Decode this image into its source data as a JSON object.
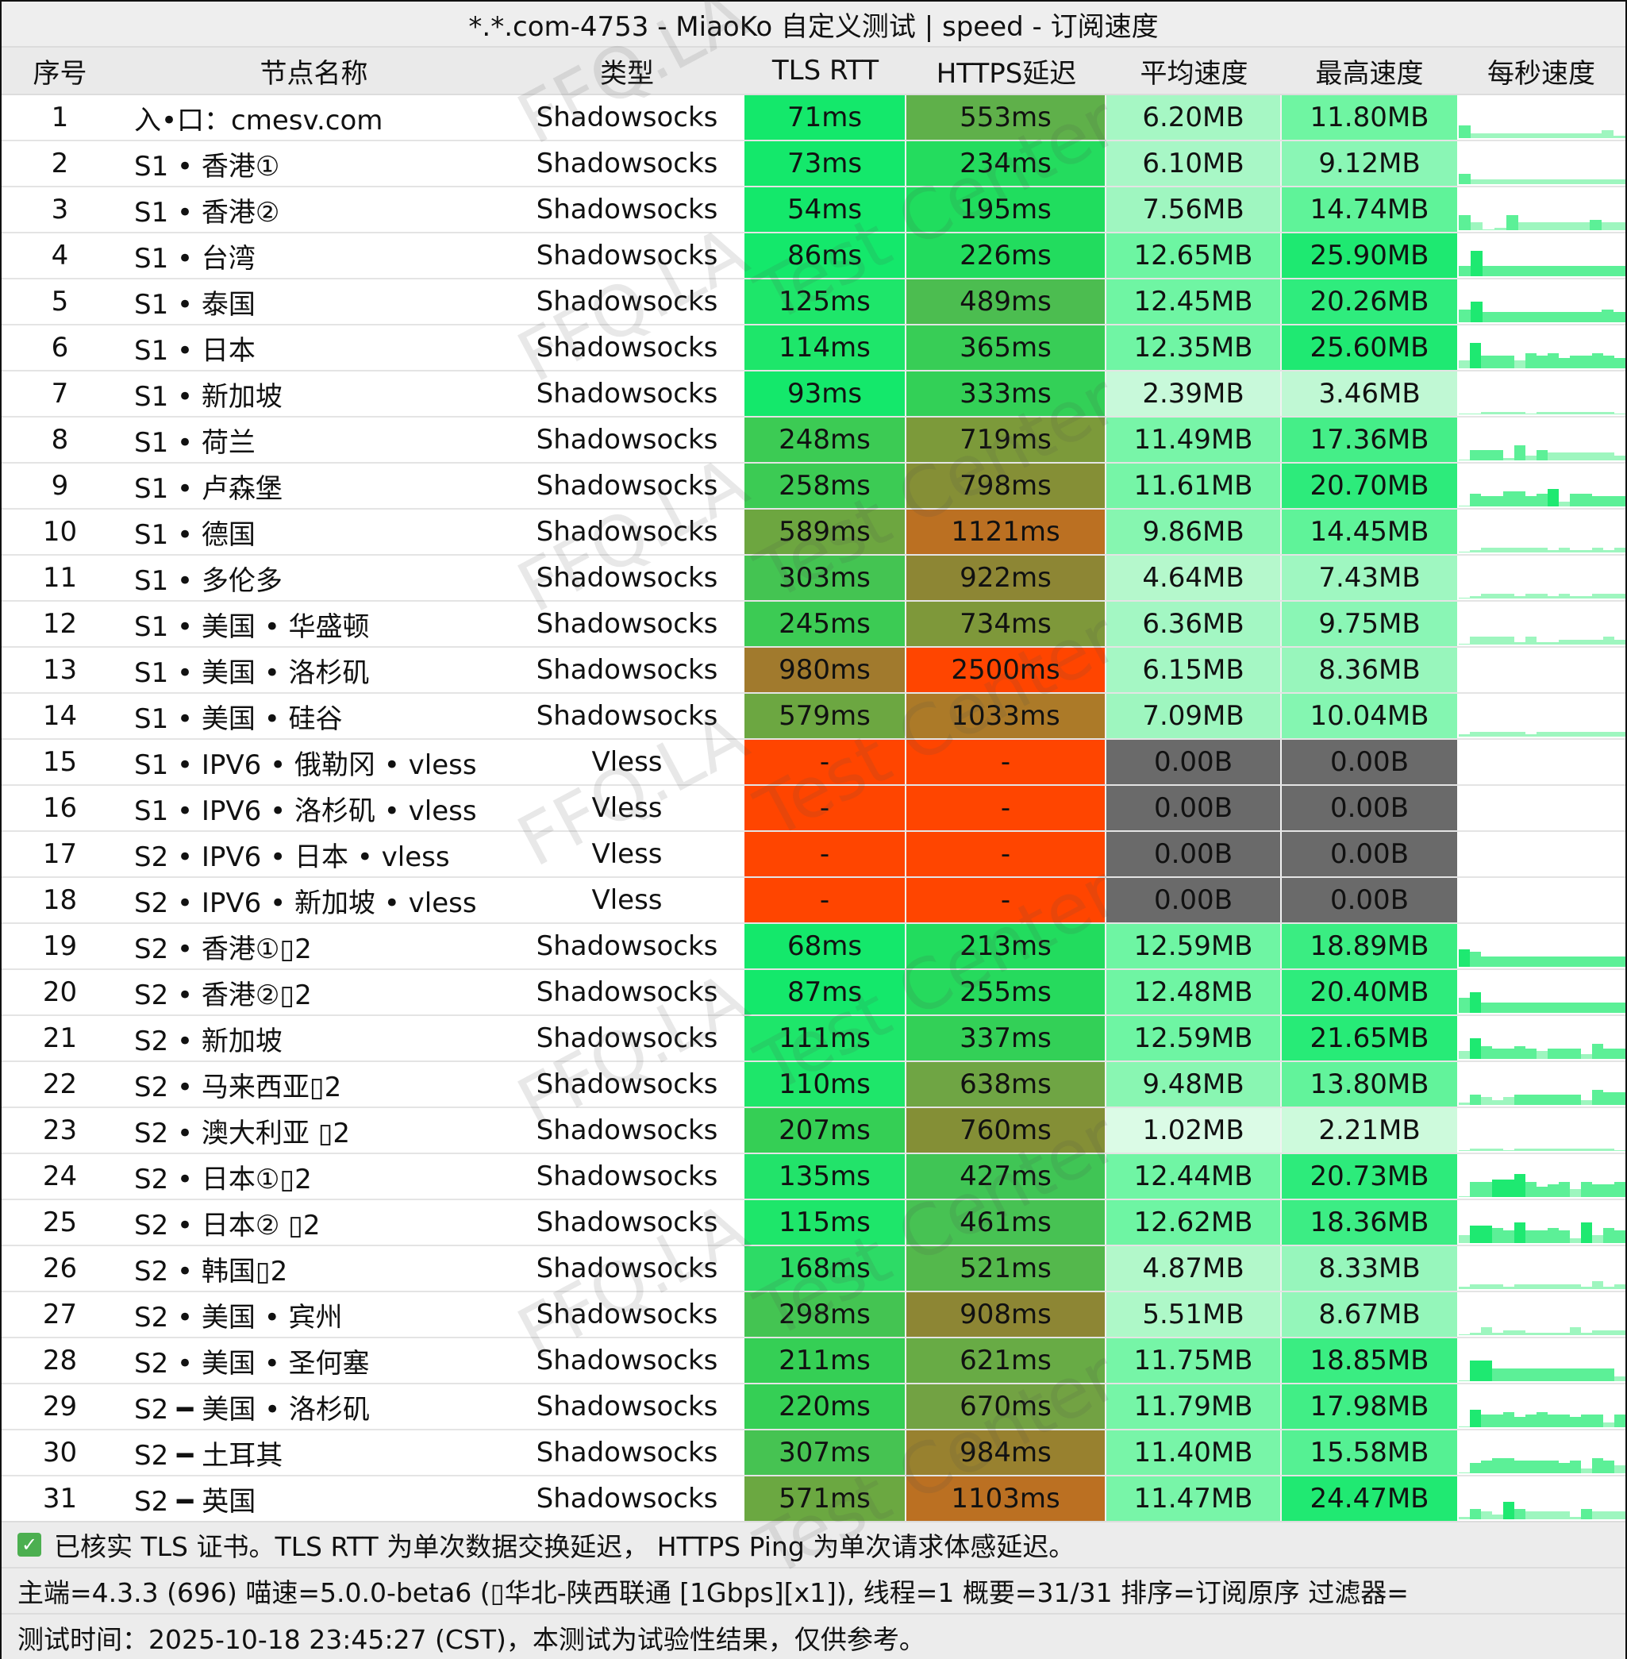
{
  "title": "*.*.com-4753 - MiaoKo 自定义测试 | speed - 订阅速度",
  "columns": {
    "idx": "序号",
    "name": "节点名称",
    "type": "类型",
    "tls": "TLS RTT",
    "https": "HTTPS延迟",
    "avg": "平均速度",
    "max": "最高速度",
    "persec": "每秒速度"
  },
  "colors": {
    "green_bright": "#0ee86a",
    "green_mid": "#3fcc5a",
    "olive": "#6fa544",
    "olive_brown": "#8a8a35",
    "orange_brown": "#bb7022",
    "red_orange": "#ff4500",
    "gray_fail": "#6a6a6a"
  },
  "rows": [
    {
      "idx": "1",
      "name": "入•口：cmesv.com",
      "type": "Shadowsocks",
      "tls": "71ms",
      "https": "553ms",
      "avg": "6.20MB",
      "max": "11.80MB",
      "tls_c": "#14e86b",
      "https_c": "#5fb04a",
      "avg_c": "#a6f7c4",
      "max_c": "#6ff5a2",
      "spark": [
        5,
        2,
        2,
        2,
        2,
        2,
        2,
        2,
        2,
        2,
        2,
        2,
        3,
        1
      ]
    },
    {
      "idx": "2",
      "name": "S1 • 香港①",
      "type": "Shadowsocks",
      "tls": "73ms",
      "https": "234ms",
      "avg": "6.10MB",
      "max": "9.12MB",
      "tls_c": "#14e86b",
      "https_c": "#24dc5e",
      "avg_c": "#a8f7c6",
      "max_c": "#8af6b5",
      "spark": [
        4,
        2,
        2,
        2,
        2,
        2,
        2,
        2,
        2,
        2,
        2,
        2,
        2,
        2
      ]
    },
    {
      "idx": "3",
      "name": "S1 • 香港②",
      "type": "Shadowsocks",
      "tls": "54ms",
      "https": "195ms",
      "avg": "7.56MB",
      "max": "14.74MB",
      "tls_c": "#14e86b",
      "https_c": "#20dd5e",
      "avg_c": "#9ff6c0",
      "max_c": "#5ff399",
      "spark": [
        6,
        3,
        0,
        1,
        6,
        3,
        3,
        3,
        3,
        3,
        3,
        4,
        3,
        3
      ]
    },
    {
      "idx": "4",
      "name": "S1 • 台湾",
      "type": "Shadowsocks",
      "tls": "86ms",
      "https": "226ms",
      "avg": "12.65MB",
      "max": "25.90MB",
      "tls_c": "#14e86b",
      "https_c": "#22dc5e",
      "avg_c": "#6df5a2",
      "max_c": "#1ee971",
      "spark": [
        4,
        10,
        4,
        4,
        4,
        4,
        4,
        4,
        4,
        4,
        4,
        4,
        4,
        4
      ]
    },
    {
      "idx": "5",
      "name": "S1 • 泰国",
      "type": "Shadowsocks",
      "tls": "125ms",
      "https": "489ms",
      "avg": "12.45MB",
      "max": "20.26MB",
      "tls_c": "#1ee66a",
      "https_c": "#4cbd50",
      "avg_c": "#6ff5a3",
      "max_c": "#2fec7d",
      "spark": [
        5,
        8,
        4,
        4,
        4,
        4,
        4,
        4,
        4,
        4,
        4,
        4,
        5,
        4
      ]
    },
    {
      "idx": "6",
      "name": "S1 • 日本",
      "type": "Shadowsocks",
      "tls": "114ms",
      "https": "365ms",
      "avg": "12.35MB",
      "max": "25.60MB",
      "tls_c": "#1ee66a",
      "https_c": "#38cd56",
      "avg_c": "#70f5a4",
      "max_c": "#1fe972",
      "spark": [
        3,
        10,
        5,
        5,
        5,
        3,
        6,
        5,
        6,
        4,
        5,
        5,
        6,
        5,
        4
      ]
    },
    {
      "idx": "7",
      "name": "S1 • 新加坡",
      "type": "Shadowsocks",
      "tls": "93ms",
      "https": "333ms",
      "avg": "2.39MB",
      "max": "3.46MB",
      "tls_c": "#14e86b",
      "https_c": "#33d057",
      "avg_c": "#c8f9da",
      "max_c": "#c0f8d4",
      "spark": [
        0,
        0,
        1,
        1,
        1,
        1,
        0,
        1,
        1,
        1,
        1,
        1,
        1,
        1,
        0
      ]
    },
    {
      "idx": "8",
      "name": "S1 • 荷兰",
      "type": "Shadowsocks",
      "tls": "248ms",
      "https": "719ms",
      "avg": "11.49MB",
      "max": "17.36MB",
      "tls_c": "#3ccb54",
      "https_c": "#7c9a3a",
      "avg_c": "#78f5a8",
      "max_c": "#45ee88",
      "spark": [
        0,
        4,
        4,
        4,
        1,
        6,
        2,
        4,
        3,
        3,
        3,
        3,
        3,
        3,
        2
      ]
    },
    {
      "idx": "9",
      "name": "S1 • 卢森堡",
      "type": "Shadowsocks",
      "tls": "258ms",
      "https": "798ms",
      "avg": "11.61MB",
      "max": "20.70MB",
      "tls_c": "#3ccb54",
      "https_c": "#858f36",
      "avg_c": "#76f5a7",
      "max_c": "#2deb7b",
      "spark": [
        0,
        5,
        4,
        4,
        6,
        6,
        4,
        5,
        7,
        2,
        5,
        5,
        4,
        4,
        4
      ]
    },
    {
      "idx": "10",
      "name": "S1 • 德国",
      "type": "Shadowsocks",
      "tls": "589ms",
      "https": "1121ms",
      "avg": "9.86MB",
      "max": "14.45MB",
      "tls_c": "#6da640",
      "https_c": "#bb7022",
      "avg_c": "#86f6b0",
      "max_c": "#5ff399",
      "spark": [
        0,
        1,
        2,
        2,
        2,
        2,
        2,
        2,
        1,
        2,
        1,
        1,
        2,
        1,
        2
      ]
    },
    {
      "idx": "11",
      "name": "S1 • 多伦多",
      "type": "Shadowsocks",
      "tls": "303ms",
      "https": "922ms",
      "avg": "4.64MB",
      "max": "7.43MB",
      "tls_c": "#44c452",
      "https_c": "#8d8634",
      "avg_c": "#b5f8cc",
      "max_c": "#9ff7c1",
      "spark": [
        0,
        1,
        2,
        2,
        2,
        1,
        2,
        2,
        1,
        2,
        1,
        1,
        2,
        2,
        2
      ]
    },
    {
      "idx": "12",
      "name": "S1 • 美国 • 华盛顿",
      "type": "Shadowsocks",
      "tls": "245ms",
      "https": "734ms",
      "avg": "6.36MB",
      "max": "9.75MB",
      "tls_c": "#3ccb54",
      "https_c": "#7e983a",
      "avg_c": "#a3f7c3",
      "max_c": "#8af6b5",
      "spark": [
        0,
        3,
        3,
        3,
        3,
        1,
        3,
        1,
        1,
        2,
        2,
        2,
        2,
        3,
        2
      ]
    },
    {
      "idx": "13",
      "name": "S1 • 美国 • 洛杉矶",
      "type": "Shadowsocks",
      "tls": "980ms",
      "https": "2500ms",
      "avg": "6.15MB",
      "max": "8.36MB",
      "tls_c": "#a17a2d",
      "https_c": "#ff4500",
      "avg_c": "#a5f7c4",
      "max_c": "#98f6bc",
      "spark": []
    },
    {
      "idx": "14",
      "name": "S1 • 美国 • 硅谷",
      "type": "Shadowsocks",
      "tls": "579ms",
      "https": "1033ms",
      "avg": "7.09MB",
      "max": "10.04MB",
      "tls_c": "#6ca741",
      "https_c": "#ac7a28",
      "avg_c": "#9ef6bf",
      "max_c": "#84f6b1",
      "spark": [
        1,
        2,
        2,
        2,
        2,
        2,
        1,
        2,
        2,
        2,
        2,
        2,
        2,
        2,
        2
      ]
    },
    {
      "idx": "15",
      "name": "S1 •  IPV6 • 俄勒冈 • vless",
      "type": "Vless",
      "tls": "-",
      "https": "-",
      "avg": "0.00B",
      "max": "0.00B",
      "tls_c": "#ff4500",
      "https_c": "#ff4500",
      "avg_c": "#6a6a6a",
      "max_c": "#6a6a6a",
      "spark": []
    },
    {
      "idx": "16",
      "name": "S1 •  IPV6 • 洛杉矶 • vless",
      "type": "Vless",
      "tls": "-",
      "https": "-",
      "avg": "0.00B",
      "max": "0.00B",
      "tls_c": "#ff4500",
      "https_c": "#ff4500",
      "avg_c": "#6a6a6a",
      "max_c": "#6a6a6a",
      "spark": []
    },
    {
      "idx": "17",
      "name": "S2 •  IPV6 • 日本 • vless",
      "type": "Vless",
      "tls": "-",
      "https": "-",
      "avg": "0.00B",
      "max": "0.00B",
      "tls_c": "#ff4500",
      "https_c": "#ff4500",
      "avg_c": "#6a6a6a",
      "max_c": "#6a6a6a",
      "spark": []
    },
    {
      "idx": "18",
      "name": "S2 •  IPV6 • 新加坡 • vless",
      "type": "Vless",
      "tls": "-",
      "https": "-",
      "avg": "0.00B",
      "max": "0.00B",
      "tls_c": "#ff4500",
      "https_c": "#ff4500",
      "avg_c": "#6a6a6a",
      "max_c": "#6a6a6a",
      "spark": []
    },
    {
      "idx": "19",
      "name": "S2 • 香港①▯2",
      "type": "Shadowsocks",
      "tls": "68ms",
      "https": "213ms",
      "avg": "12.59MB",
      "max": "18.89MB",
      "tls_c": "#14e86b",
      "https_c": "#22dc5e",
      "avg_c": "#6ef5a3",
      "max_c": "#3aed82",
      "spark": [
        7,
        6,
        4,
        4,
        4,
        4,
        4,
        4,
        4,
        4,
        4,
        4,
        4,
        4,
        4
      ]
    },
    {
      "idx": "20",
      "name": "S2 • 香港②▯2",
      "type": "Shadowsocks",
      "tls": "87ms",
      "https": "255ms",
      "avg": "12.48MB",
      "max": "20.40MB",
      "tls_c": "#14e86b",
      "https_c": "#26da5d",
      "avg_c": "#6ff5a3",
      "max_c": "#2eec7c",
      "spark": [
        6,
        8,
        4,
        4,
        4,
        4,
        4,
        4,
        4,
        4,
        4,
        4,
        4,
        4,
        4
      ]
    },
    {
      "idx": "21",
      "name": "S2 • 新加坡",
      "type": "Shadowsocks",
      "tls": "111ms",
      "https": "337ms",
      "avg": "12.59MB",
      "max": "21.65MB",
      "tls_c": "#1ee66a",
      "https_c": "#33d057",
      "avg_c": "#6ef5a3",
      "max_c": "#27eb77",
      "spark": [
        3,
        8,
        5,
        4,
        4,
        5,
        4,
        3,
        4,
        4,
        4,
        2,
        6,
        4,
        4
      ]
    },
    {
      "idx": "22",
      "name": "S2 • 马来西亚▯2",
      "type": "Shadowsocks",
      "tls": "110ms",
      "https": "638ms",
      "avg": "9.48MB",
      "max": "13.80MB",
      "tls_c": "#1ee66a",
      "https_c": "#6fa544",
      "avg_c": "#89f6b2",
      "max_c": "#62f39b",
      "spark": [
        1,
        4,
        3,
        2,
        3,
        4,
        4,
        4,
        4,
        4,
        4,
        2,
        6,
        5,
        5
      ]
    },
    {
      "idx": "23",
      "name": "S2 • 澳大利亚 ▯2",
      "type": "Shadowsocks",
      "tls": "207ms",
      "https": "760ms",
      "avg": "1.02MB",
      "max": "2.21MB",
      "tls_c": "#35cf55",
      "https_c": "#848f36",
      "avg_c": "#dbfbe6",
      "max_c": "#cdfadc",
      "spark": [
        0,
        1,
        1,
        1,
        0,
        1,
        1,
        1,
        1,
        1,
        1,
        1,
        1,
        1,
        0
      ]
    },
    {
      "idx": "24",
      "name": "S2 • 日本①▯2",
      "type": "Shadowsocks",
      "tls": "135ms",
      "https": "427ms",
      "avg": "12.44MB",
      "max": "20.73MB",
      "tls_c": "#22e36a",
      "https_c": "#40c555",
      "avg_c": "#70f5a4",
      "max_c": "#2deb7b",
      "spark": [
        0,
        6,
        6,
        7,
        7,
        9,
        6,
        4,
        5,
        6,
        3,
        6,
        5,
        5,
        6
      ]
    },
    {
      "idx": "25",
      "name": "S2 • 日本② ▯2",
      "type": "Shadowsocks",
      "tls": "115ms",
      "https": "461ms",
      "avg": "12.62MB",
      "max": "18.36MB",
      "tls_c": "#1ee66a",
      "https_c": "#47c253",
      "avg_c": "#6ef5a3",
      "max_c": "#3ced84",
      "spark": [
        3,
        7,
        7,
        6,
        5,
        8,
        5,
        5,
        6,
        5,
        2,
        8,
        3,
        6,
        5
      ]
    },
    {
      "idx": "26",
      "name": "S2 • 韩国▯2",
      "type": "Shadowsocks",
      "tls": "168ms",
      "https": "521ms",
      "avg": "4.87MB",
      "max": "8.33MB",
      "tls_c": "#2ddb66",
      "https_c": "#54b84c",
      "avg_c": "#b2f8ca",
      "max_c": "#97f6bc",
      "spark": [
        1,
        2,
        2,
        2,
        1,
        2,
        2,
        2,
        2,
        2,
        2,
        1,
        3,
        1,
        2
      ]
    },
    {
      "idx": "27",
      "name": "S2 • 美国 • 宾州",
      "type": "Shadowsocks",
      "tls": "298ms",
      "https": "908ms",
      "avg": "5.51MB",
      "max": "8.67MB",
      "tls_c": "#44c452",
      "https_c": "#8d8634",
      "avg_c": "#aef8c8",
      "max_c": "#94f6ba",
      "spark": [
        0,
        1,
        3,
        1,
        2,
        2,
        1,
        1,
        1,
        1,
        3,
        1,
        2,
        2,
        2
      ]
    },
    {
      "idx": "28",
      "name": "S2 • 美国 • 圣何塞",
      "type": "Shadowsocks",
      "tls": "211ms",
      "https": "621ms",
      "avg": "11.75MB",
      "max": "18.85MB",
      "tls_c": "#35cf55",
      "https_c": "#68ab45",
      "avg_c": "#76f5a7",
      "max_c": "#3aed82",
      "spark": [
        0,
        8,
        8,
        5,
        5,
        5,
        5,
        5,
        5,
        5,
        5,
        5,
        5,
        5,
        2
      ]
    },
    {
      "idx": "29",
      "name": "S2 ━ 美国 • 洛杉矶",
      "type": "Shadowsocks",
      "tls": "220ms",
      "https": "670ms",
      "avg": "11.79MB",
      "max": "17.98MB",
      "tls_c": "#35cf55",
      "https_c": "#72a243",
      "avg_c": "#76f5a7",
      "max_c": "#41ee86",
      "spark": [
        0,
        7,
        5,
        5,
        6,
        4,
        5,
        6,
        5,
        5,
        4,
        5,
        5,
        2,
        5
      ]
    },
    {
      "idx": "30",
      "name": "S2 ━ 土耳其",
      "type": "Shadowsocks",
      "tls": "307ms",
      "https": "984ms",
      "avg": "11.40MB",
      "max": "15.58MB",
      "tls_c": "#46c352",
      "https_c": "#98812f",
      "avg_c": "#78f5a8",
      "max_c": "#55f193",
      "spark": [
        0,
        4,
        5,
        6,
        6,
        5,
        5,
        5,
        5,
        4,
        5,
        2,
        6,
        5,
        3
      ]
    },
    {
      "idx": "31",
      "name": "S2 ━ 英国",
      "type": "Shadowsocks",
      "tls": "571ms",
      "https": "1103ms",
      "avg": "11.47MB",
      "max": "24.47MB",
      "tls_c": "#6ba841",
      "https_c": "#bb7022",
      "avg_c": "#78f5a8",
      "max_c": "#20e972",
      "spark": [
        1,
        4,
        3,
        2,
        7,
        4,
        3,
        3,
        3,
        3,
        1,
        4,
        3,
        3,
        3
      ]
    }
  ],
  "footer": {
    "line1": "已核实 TLS 证书。TLS RTT 为单次数据交换延迟， HTTPS Ping 为单次请求体感延迟。",
    "line2": "主端=4.3.3 (696) 喵速=5.0.0-beta6 (▯华北-陕西联通 [1Gbps][x1]), 线程=1 概要=31/31 排序=订阅原序 过滤器=",
    "line3": "测试时间：2025-10-18 23:45:27 (CST)，本测试为试验性结果，仅供参考。",
    "check_icon": "check-box-icon"
  },
  "watermark": {
    "text1": "FFQ.LA",
    "text2": "Test Center"
  }
}
